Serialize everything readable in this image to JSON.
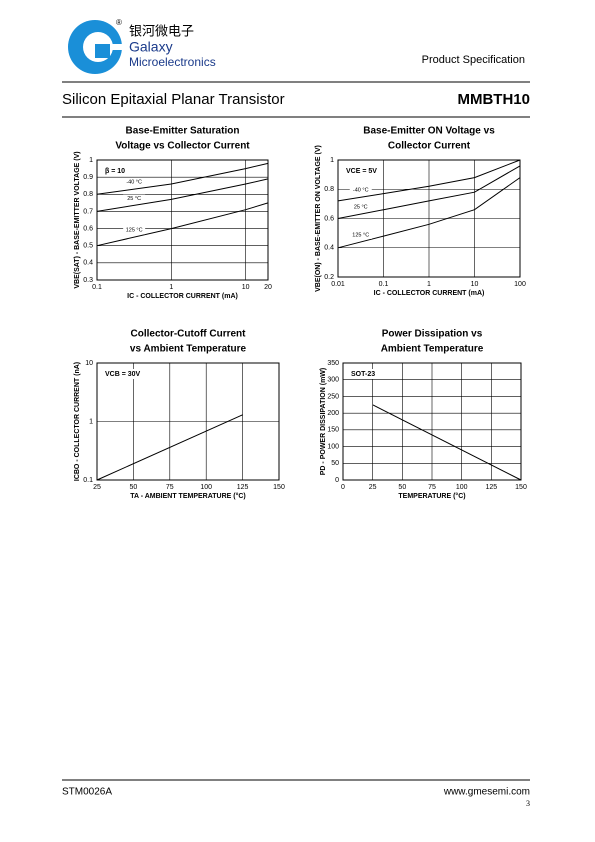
{
  "header": {
    "brand_cn": "银河微电子",
    "brand": "Galaxy",
    "brand_sub": "Microelectronics",
    "doc_type": "Product Specification",
    "title": "Silicon Epitaxial Planar Transistor",
    "part": "MMBTH10"
  },
  "footer": {
    "code": "STM0026A",
    "url": "www.gmesemi.com",
    "page": "3"
  },
  "chart_data": [
    {
      "type": "line",
      "title": [
        "Base-Emitter Saturation",
        "Voltage vs Collector Current"
      ],
      "xlabel": "IC - COLLECTOR CURRENT (mA)",
      "ylabel": "VBE(SAT) - BASE-EMITTER VOLTAGE (V)",
      "annotation": "β = 10",
      "xscale": "log",
      "xlim": [
        0.1,
        20
      ],
      "xticks": [
        0.1,
        1,
        10,
        20
      ],
      "ylim": [
        0.3,
        1
      ],
      "yticks": [
        0.3,
        0.4,
        0.5,
        0.6,
        0.7,
        0.8,
        0.9,
        1
      ],
      "grid": true,
      "x": [
        0.1,
        1,
        10,
        20
      ],
      "series": [
        {
          "name": "-40 °C",
          "color": "#000000",
          "values": [
            0.8,
            0.86,
            0.95,
            0.98
          ]
        },
        {
          "name": "25 °C",
          "color": "#000000",
          "values": [
            0.7,
            0.77,
            0.86,
            0.89
          ]
        },
        {
          "name": "125 °C",
          "color": "#000000",
          "values": [
            0.5,
            0.6,
            0.71,
            0.75
          ]
        }
      ]
    },
    {
      "type": "line",
      "title": [
        "Base-Emitter ON Voltage vs",
        "Collector Current"
      ],
      "xlabel": "IC - COLLECTOR CURRENT (mA)",
      "ylabel": "VBE(ON) - BASE-EMITTER ON VOLTAGE (V)",
      "annotation": "VCE = 5V",
      "xscale": "log",
      "xlim": [
        0.01,
        100
      ],
      "xticks": [
        0.01,
        0.1,
        1,
        10,
        100
      ],
      "ylim": [
        0.2,
        1
      ],
      "yticks": [
        0.2,
        0.4,
        0.6,
        0.8,
        1
      ],
      "grid": true,
      "x": [
        0.01,
        0.1,
        1,
        10,
        100
      ],
      "series": [
        {
          "name": "-40 °C",
          "color": "#000000",
          "values": [
            0.72,
            0.77,
            0.82,
            0.88,
            1.0
          ]
        },
        {
          "name": "25 °C",
          "color": "#000000",
          "values": [
            0.6,
            0.66,
            0.72,
            0.78,
            0.96
          ]
        },
        {
          "name": "125 °C",
          "color": "#000000",
          "values": [
            0.4,
            0.48,
            0.56,
            0.66,
            0.88
          ]
        }
      ]
    },
    {
      "type": "line",
      "title": [
        "Collector-Cutoff Current",
        "vs Ambient Temperature"
      ],
      "xlabel": "TA - AMBIENT TEMPERATURE (°C)",
      "ylabel": "ICBO - COLLECTOR CURRENT (nA)",
      "annotation": "VCB = 30V",
      "yscale": "log",
      "xlim": [
        25,
        150
      ],
      "xticks": [
        25,
        50,
        75,
        100,
        125,
        150
      ],
      "ylim": [
        0.1,
        10
      ],
      "yticks": [
        0.1,
        1,
        10
      ],
      "grid": true,
      "x": [
        25,
        125
      ],
      "series": [
        {
          "color": "#000000",
          "values": [
            0.1,
            1.3
          ]
        }
      ]
    },
    {
      "type": "line",
      "title": [
        "Power Dissipation vs",
        "Ambient Temperature"
      ],
      "xlabel": "TEMPERATURE (°C)",
      "ylabel": "PD - POWER DISSIPATION (mW)",
      "annotation": "SOT-23",
      "xlim": [
        0,
        150
      ],
      "xticks": [
        0,
        25,
        50,
        75,
        100,
        125,
        150
      ],
      "ylim": [
        0,
        350
      ],
      "yticks": [
        0,
        50,
        100,
        150,
        200,
        250,
        300,
        350
      ],
      "grid": true,
      "x": [
        25,
        150
      ],
      "series": [
        {
          "color": "#000000",
          "values": [
            225,
            0
          ]
        }
      ]
    }
  ]
}
